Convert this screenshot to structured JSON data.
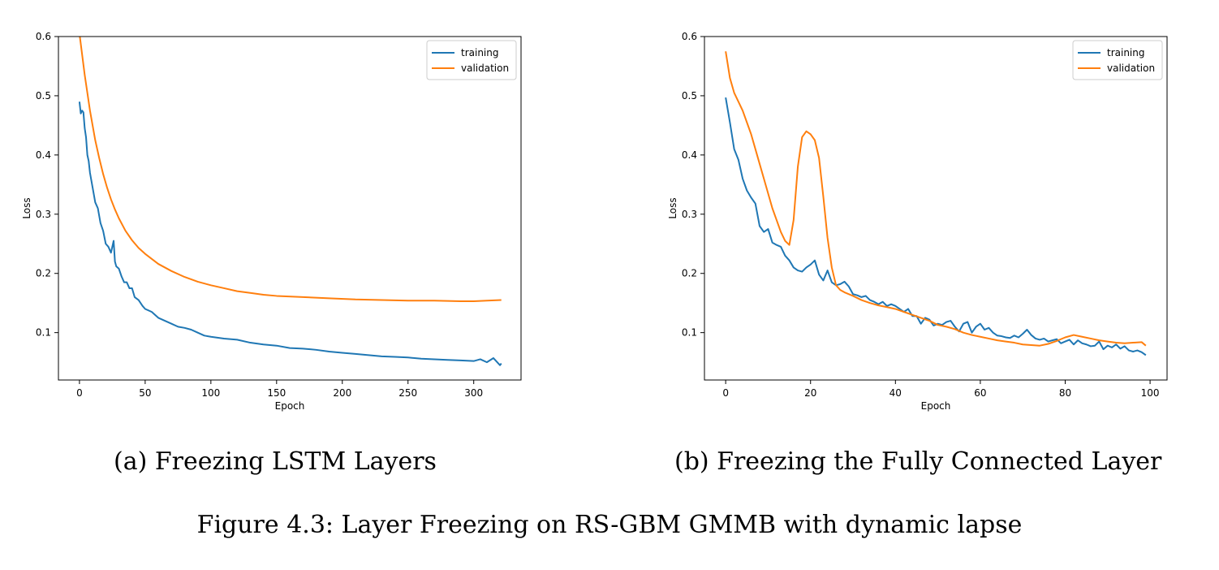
{
  "figure_caption": "Figure 4.3: Layer Freezing on RS-GBM GMMB with dynamic lapse",
  "colors": {
    "training": "#1f77b4",
    "validation": "#ff7f0e"
  },
  "chart_data": [
    {
      "type": "line",
      "caption": "(a) Freezing LSTM Layers",
      "xlabel": "Epoch",
      "ylabel": "Loss",
      "xlim": [
        -16,
        336
      ],
      "ylim": [
        0.02,
        0.6
      ],
      "xticks": [
        0,
        50,
        100,
        150,
        200,
        250,
        300
      ],
      "yticks": [
        0.1,
        0.2,
        0.3,
        0.4,
        0.5,
        0.6
      ],
      "ytick_labels": [
        "0.1",
        "0.2",
        "0.3",
        "0.4",
        "0.5",
        "0.6"
      ],
      "legend": {
        "position": "top-right",
        "entries": [
          "training",
          "validation"
        ]
      },
      "series": [
        {
          "name": "training",
          "x": [
            0,
            1,
            2,
            3,
            4,
            5,
            6,
            7,
            8,
            10,
            12,
            14,
            16,
            18,
            20,
            22,
            24,
            26,
            27,
            28,
            30,
            32,
            34,
            36,
            38,
            40,
            42,
            45,
            48,
            50,
            55,
            60,
            65,
            70,
            75,
            80,
            85,
            90,
            95,
            100,
            110,
            120,
            130,
            140,
            150,
            160,
            170,
            180,
            190,
            200,
            210,
            220,
            230,
            240,
            250,
            260,
            270,
            280,
            290,
            300,
            305,
            310,
            315,
            320,
            321
          ],
          "y": [
            0.49,
            0.47,
            0.475,
            0.472,
            0.445,
            0.43,
            0.4,
            0.39,
            0.37,
            0.345,
            0.32,
            0.31,
            0.285,
            0.272,
            0.25,
            0.245,
            0.235,
            0.255,
            0.22,
            0.212,
            0.208,
            0.195,
            0.185,
            0.185,
            0.175,
            0.175,
            0.16,
            0.155,
            0.145,
            0.14,
            0.135,
            0.125,
            0.12,
            0.115,
            0.11,
            0.108,
            0.105,
            0.1,
            0.095,
            0.093,
            0.09,
            0.088,
            0.083,
            0.08,
            0.078,
            0.074,
            0.073,
            0.071,
            0.068,
            0.066,
            0.064,
            0.062,
            0.06,
            0.059,
            0.058,
            0.056,
            0.055,
            0.054,
            0.053,
            0.052,
            0.055,
            0.05,
            0.057,
            0.045,
            0.048
          ]
        },
        {
          "name": "validation",
          "x": [
            0,
            2,
            4,
            6,
            8,
            10,
            12,
            15,
            18,
            21,
            24,
            27,
            30,
            35,
            40,
            45,
            50,
            60,
            70,
            80,
            90,
            100,
            110,
            120,
            130,
            140,
            150,
            170,
            190,
            210,
            230,
            250,
            270,
            290,
            300,
            310,
            321
          ],
          "y": [
            0.605,
            0.57,
            0.535,
            0.505,
            0.475,
            0.45,
            0.425,
            0.395,
            0.368,
            0.345,
            0.325,
            0.308,
            0.293,
            0.272,
            0.256,
            0.243,
            0.233,
            0.216,
            0.204,
            0.194,
            0.186,
            0.18,
            0.175,
            0.17,
            0.167,
            0.164,
            0.162,
            0.16,
            0.158,
            0.156,
            0.155,
            0.154,
            0.154,
            0.153,
            0.153,
            0.154,
            0.155
          ]
        }
      ]
    },
    {
      "type": "line",
      "caption": "(b) Freezing the Fully Connected Layer",
      "xlabel": "Epoch",
      "ylabel": "Loss",
      "xlim": [
        -5,
        104
      ],
      "ylim": [
        0.02,
        0.6
      ],
      "xticks": [
        0,
        20,
        40,
        60,
        80,
        100
      ],
      "yticks": [
        0.1,
        0.2,
        0.3,
        0.4,
        0.5,
        0.6
      ],
      "ytick_labels": [
        "0.1",
        "0.2",
        "0.3",
        "0.4",
        "0.5",
        "0.6"
      ],
      "legend": {
        "position": "top-right",
        "entries": [
          "training",
          "validation"
        ]
      },
      "series": [
        {
          "name": "training",
          "x": [
            0,
            1,
            2,
            3,
            4,
            5,
            6,
            7,
            8,
            9,
            10,
            11,
            12,
            13,
            14,
            15,
            16,
            17,
            18,
            19,
            20,
            21,
            22,
            23,
            24,
            25,
            26,
            27,
            28,
            29,
            30,
            31,
            32,
            33,
            34,
            35,
            36,
            37,
            38,
            39,
            40,
            41,
            42,
            43,
            44,
            45,
            46,
            47,
            48,
            49,
            50,
            51,
            52,
            53,
            54,
            55,
            56,
            57,
            58,
            59,
            60,
            61,
            62,
            63,
            64,
            65,
            66,
            67,
            68,
            69,
            70,
            71,
            72,
            73,
            74,
            75,
            76,
            77,
            78,
            79,
            80,
            81,
            82,
            83,
            84,
            85,
            86,
            87,
            88,
            89,
            90,
            91,
            92,
            93,
            94,
            95,
            96,
            97,
            98,
            99
          ],
          "y": [
            0.497,
            0.455,
            0.41,
            0.392,
            0.36,
            0.34,
            0.328,
            0.318,
            0.28,
            0.27,
            0.275,
            0.252,
            0.248,
            0.245,
            0.23,
            0.222,
            0.21,
            0.205,
            0.203,
            0.21,
            0.215,
            0.222,
            0.198,
            0.188,
            0.205,
            0.185,
            0.18,
            0.182,
            0.186,
            0.178,
            0.165,
            0.163,
            0.16,
            0.162,
            0.155,
            0.152,
            0.148,
            0.152,
            0.145,
            0.148,
            0.145,
            0.14,
            0.135,
            0.14,
            0.128,
            0.128,
            0.115,
            0.125,
            0.122,
            0.112,
            0.115,
            0.113,
            0.118,
            0.12,
            0.11,
            0.102,
            0.115,
            0.118,
            0.1,
            0.11,
            0.115,
            0.105,
            0.108,
            0.1,
            0.095,
            0.094,
            0.092,
            0.091,
            0.095,
            0.092,
            0.098,
            0.105,
            0.096,
            0.09,
            0.088,
            0.09,
            0.085,
            0.087,
            0.089,
            0.082,
            0.085,
            0.088,
            0.08,
            0.087,
            0.082,
            0.08,
            0.077,
            0.078,
            0.085,
            0.072,
            0.078,
            0.075,
            0.08,
            0.073,
            0.077,
            0.07,
            0.068,
            0.07,
            0.067,
            0.062
          ]
        },
        {
          "name": "validation",
          "x": [
            0,
            1,
            2,
            3,
            4,
            5,
            6,
            7,
            8,
            9,
            10,
            11,
            12,
            13,
            14,
            15,
            16,
            17,
            18,
            19,
            20,
            21,
            22,
            23,
            24,
            25,
            26,
            27,
            28,
            30,
            32,
            34,
            36,
            38,
            40,
            42,
            44,
            46,
            48,
            50,
            52,
            54,
            56,
            58,
            60,
            62,
            64,
            66,
            68,
            70,
            72,
            74,
            76,
            78,
            80,
            82,
            84,
            86,
            88,
            90,
            92,
            94,
            96,
            98,
            99
          ],
          "y": [
            0.575,
            0.53,
            0.505,
            0.49,
            0.475,
            0.455,
            0.435,
            0.41,
            0.385,
            0.36,
            0.335,
            0.31,
            0.29,
            0.27,
            0.255,
            0.248,
            0.29,
            0.38,
            0.43,
            0.44,
            0.435,
            0.425,
            0.395,
            0.33,
            0.26,
            0.21,
            0.18,
            0.172,
            0.168,
            0.162,
            0.155,
            0.15,
            0.146,
            0.143,
            0.14,
            0.135,
            0.13,
            0.125,
            0.12,
            0.113,
            0.11,
            0.106,
            0.1,
            0.096,
            0.093,
            0.09,
            0.087,
            0.085,
            0.083,
            0.08,
            0.079,
            0.078,
            0.081,
            0.086,
            0.092,
            0.096,
            0.093,
            0.09,
            0.087,
            0.085,
            0.083,
            0.082,
            0.083,
            0.084,
            0.078
          ]
        }
      ]
    }
  ]
}
